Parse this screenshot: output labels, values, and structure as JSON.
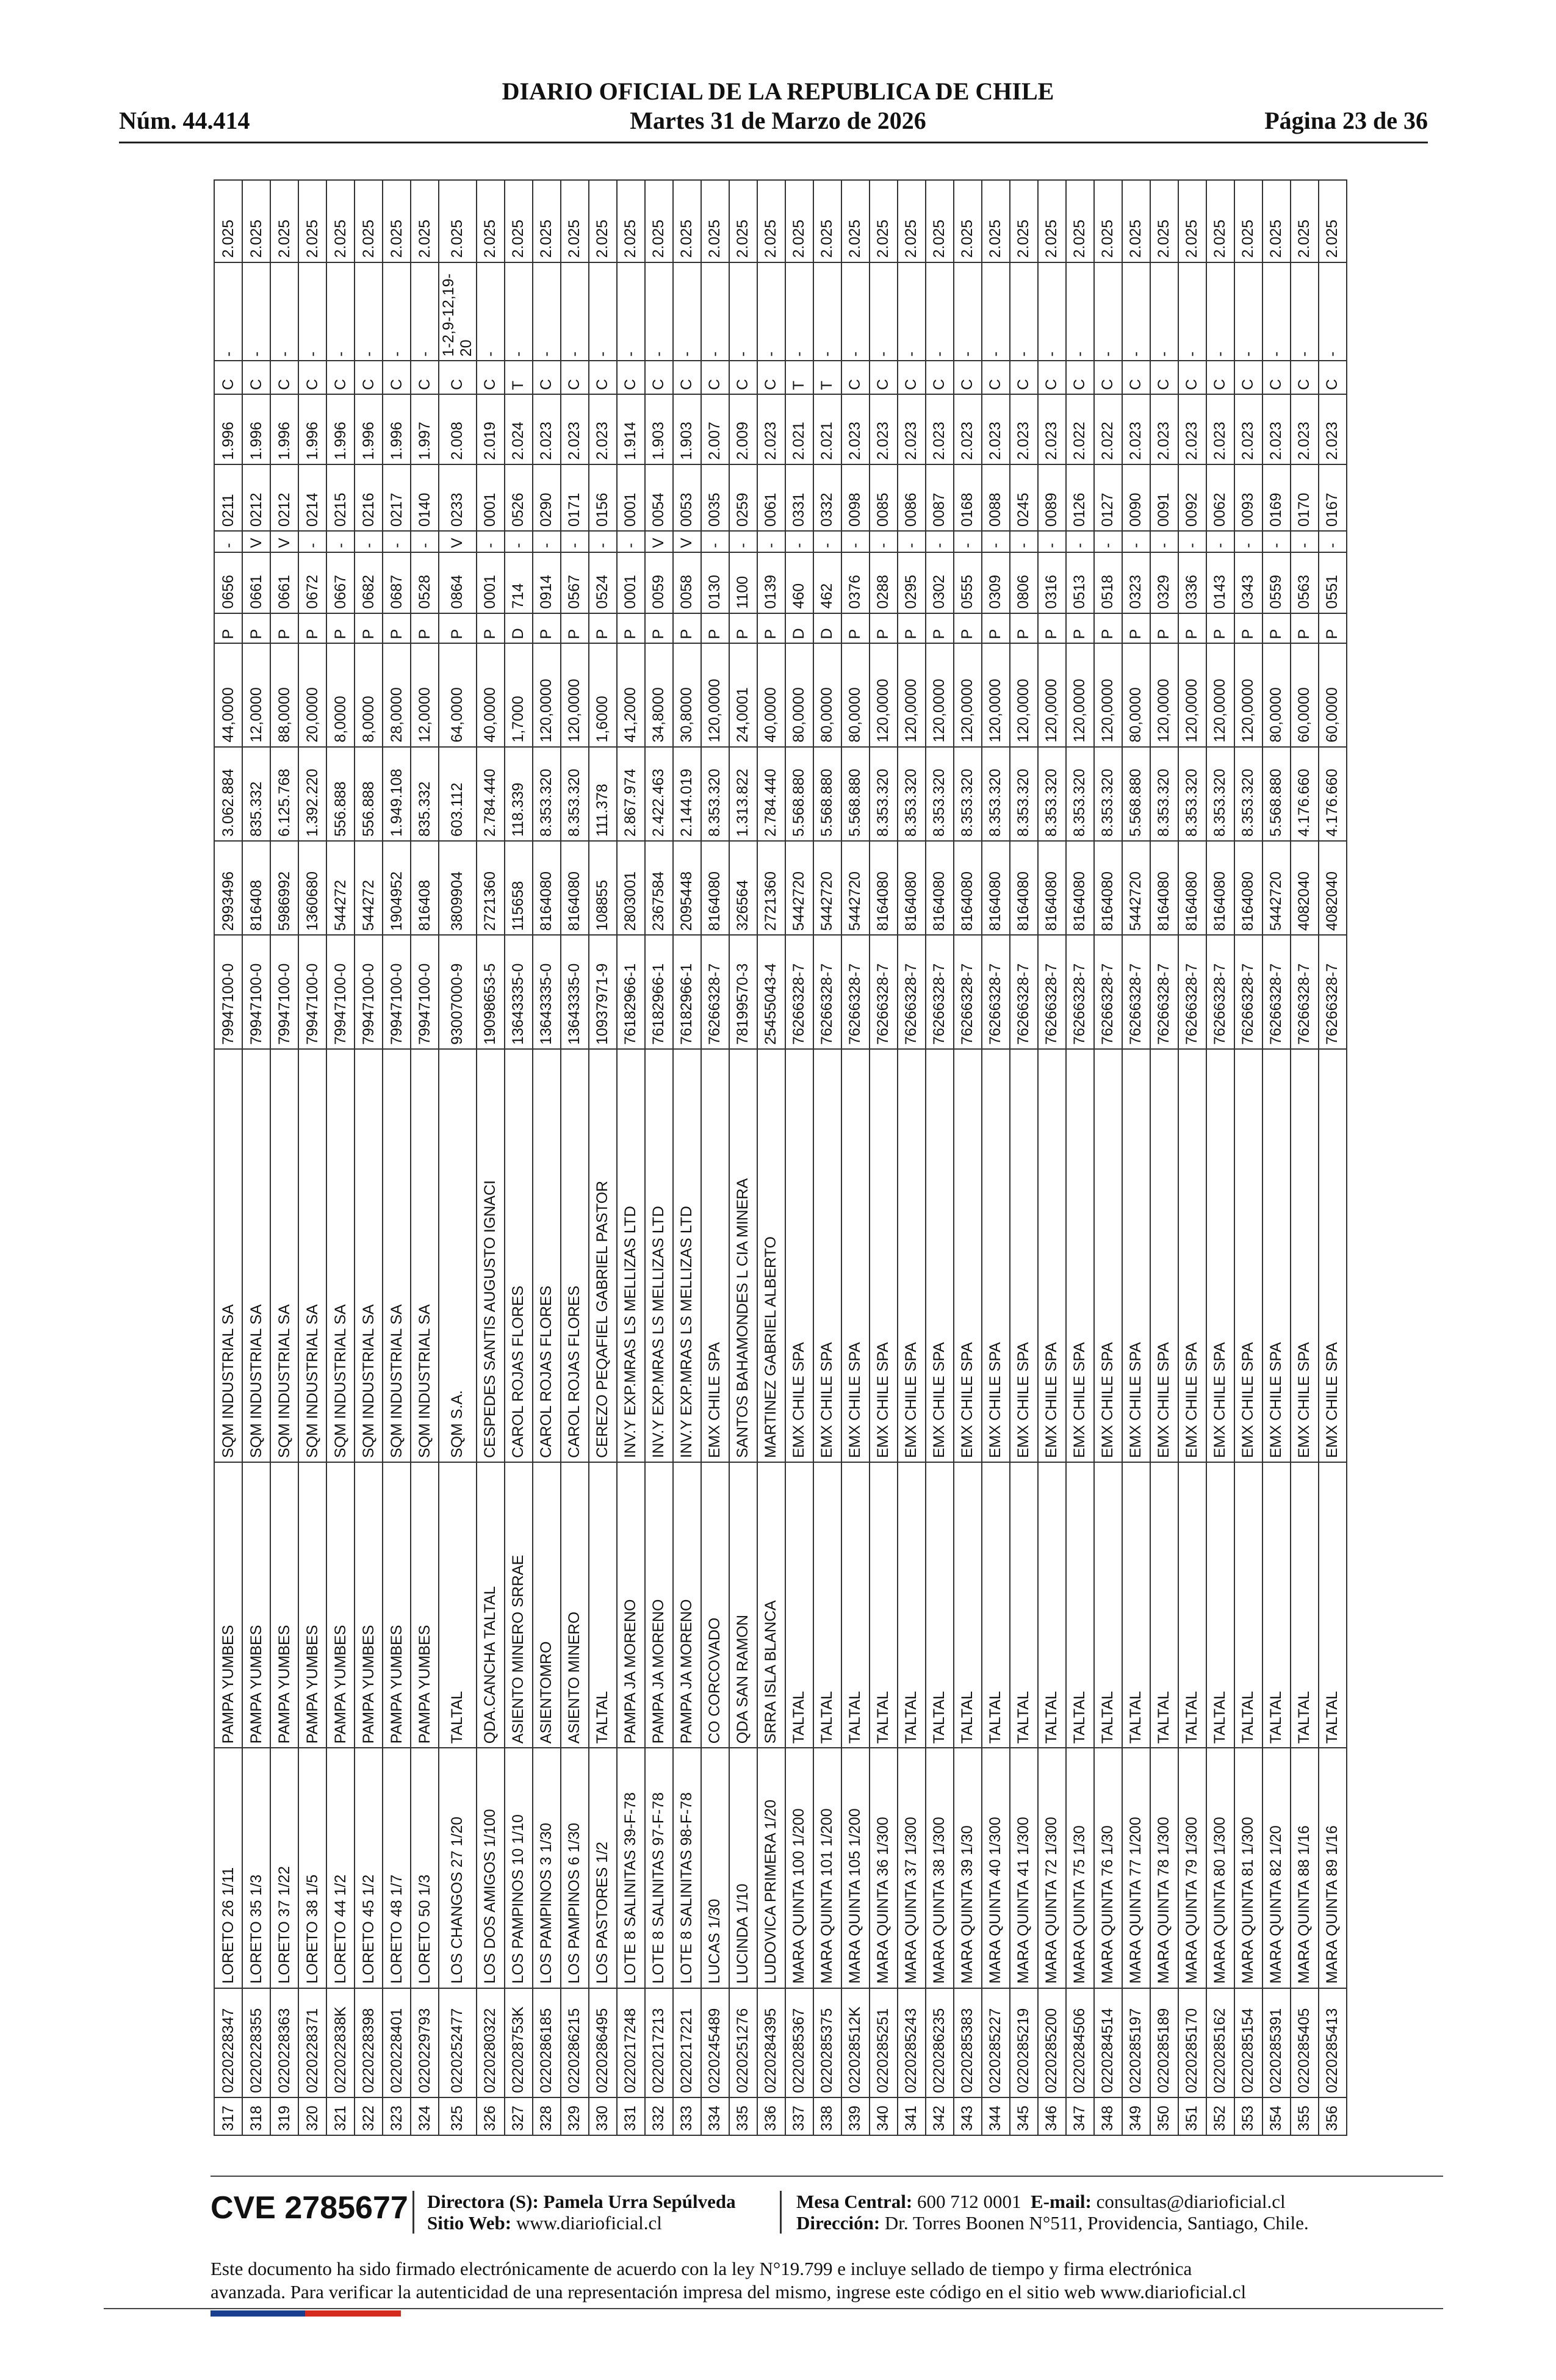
{
  "header": {
    "title": "DIARIO OFICIAL DE LA REPUBLICA DE CHILE",
    "number": "Núm. 44.414",
    "date": "Martes 31 de Marzo de 2026",
    "page": "Página 23 de 36"
  },
  "table": {
    "rows": [
      [
        "317",
        "0220228347",
        "LORETO 26 1/11",
        "PAMPA YUMBES",
        "SQM INDUSTRIAL SA",
        "79947100-0",
        "2993496",
        "3.062.884",
        "44,0000",
        "P",
        "0656",
        "-",
        "0211",
        "1.996",
        "C",
        "-",
        "2.025"
      ],
      [
        "318",
        "0220228355",
        "LORETO 35 1/3",
        "PAMPA YUMBES",
        "SQM INDUSTRIAL SA",
        "79947100-0",
        "816408",
        "835.332",
        "12,0000",
        "P",
        "0661",
        "V",
        "0212",
        "1.996",
        "C",
        "-",
        "2.025"
      ],
      [
        "319",
        "0220228363",
        "LORETO 37 1/22",
        "PAMPA YUMBES",
        "SQM INDUSTRIAL SA",
        "79947100-0",
        "5986992",
        "6.125.768",
        "88,0000",
        "P",
        "0661",
        "V",
        "0212",
        "1.996",
        "C",
        "-",
        "2.025"
      ],
      [
        "320",
        "0220228371",
        "LORETO 38 1/5",
        "PAMPA YUMBES",
        "SQM INDUSTRIAL SA",
        "79947100-0",
        "1360680",
        "1.392.220",
        "20,0000",
        "P",
        "0672",
        "-",
        "0214",
        "1.996",
        "C",
        "-",
        "2.025"
      ],
      [
        "321",
        "022022838K",
        "LORETO 44 1/2",
        "PAMPA YUMBES",
        "SQM INDUSTRIAL SA",
        "79947100-0",
        "544272",
        "556.888",
        "8,0000",
        "P",
        "0667",
        "-",
        "0215",
        "1.996",
        "C",
        "-",
        "2.025"
      ],
      [
        "322",
        "0220228398",
        "LORETO 45 1/2",
        "PAMPA YUMBES",
        "SQM INDUSTRIAL SA",
        "79947100-0",
        "544272",
        "556.888",
        "8,0000",
        "P",
        "0682",
        "-",
        "0216",
        "1.996",
        "C",
        "-",
        "2.025"
      ],
      [
        "323",
        "0220228401",
        "LORETO 48 1/7",
        "PAMPA YUMBES",
        "SQM INDUSTRIAL SA",
        "79947100-0",
        "1904952",
        "1.949.108",
        "28,0000",
        "P",
        "0687",
        "-",
        "0217",
        "1.996",
        "C",
        "-",
        "2.025"
      ],
      [
        "324",
        "0220229793",
        "LORETO 50 1/3",
        "PAMPA YUMBES",
        "SQM INDUSTRIAL SA",
        "79947100-0",
        "816408",
        "835.332",
        "12,0000",
        "P",
        "0528",
        "-",
        "0140",
        "1.997",
        "C",
        "-",
        "2.025"
      ],
      [
        "325",
        "0220252477",
        "LOS CHANGOS 27 1/20",
        "TALTAL",
        "SQM S.A.",
        "93007000-9",
        "3809904",
        "603.112",
        "64,0000",
        "P",
        "0864",
        "V",
        "0233",
        "2.008",
        "C",
        "1-2,9-12,19-20",
        "2.025"
      ],
      [
        "326",
        "0220280322",
        "LOS DOS AMIGOS 1/100",
        "QDA.CANCHA TALTAL",
        "CESPEDES SANTIS AUGUSTO IGNACI",
        "19098653-5",
        "2721360",
        "2.784.440",
        "40,0000",
        "P",
        "0001",
        "-",
        "0001",
        "2.019",
        "C",
        "-",
        "2.025"
      ],
      [
        "327",
        "022028753K",
        "LOS PAMPINOS 10 1/10",
        "ASIENTO MINERO SRRAE",
        "CAROL ROJAS FLORES",
        "13643335-0",
        "115658",
        "118.339",
        "1,7000",
        "D",
        "714",
        "-",
        "0526",
        "2.024",
        "T",
        "-",
        "2.025"
      ],
      [
        "328",
        "0220286185",
        "LOS PAMPINOS 3 1/30",
        "ASIENTOMRO",
        "CAROL ROJAS FLORES",
        "13643335-0",
        "8164080",
        "8.353.320",
        "120,0000",
        "P",
        "0914",
        "-",
        "0290",
        "2.023",
        "C",
        "-",
        "2.025"
      ],
      [
        "329",
        "0220286215",
        "LOS PAMPINOS 6 1/30",
        "ASIENTO MINERO",
        "CAROL ROJAS FLORES",
        "13643335-0",
        "8164080",
        "8.353.320",
        "120,0000",
        "P",
        "0567",
        "-",
        "0171",
        "2.023",
        "C",
        "-",
        "2.025"
      ],
      [
        "330",
        "0220286495",
        "LOS PASTORES 1/2",
        "TALTAL",
        "CEREZO PEQAFIEL GABRIEL PASTOR",
        "10937971-9",
        "108855",
        "111.378",
        "1,6000",
        "P",
        "0524",
        "-",
        "0156",
        "2.023",
        "C",
        "-",
        "2.025"
      ],
      [
        "331",
        "0220217248",
        "LOTE 8 SALINITAS 39-F-78",
        "PAMPA JA MORENO",
        "INV.Y EXP.MRAS LS MELLIZAS LTD",
        "76182966-1",
        "2803001",
        "2.867.974",
        "41,2000",
        "P",
        "0001",
        "-",
        "0001",
        "1.914",
        "C",
        "-",
        "2.025"
      ],
      [
        "332",
        "0220217213",
        "LOTE 8 SALINITAS 97-F-78",
        "PAMPA JA MORENO",
        "INV.Y EXP.MRAS LS MELLIZAS LTD",
        "76182966-1",
        "2367584",
        "2.422.463",
        "34,8000",
        "P",
        "0059",
        "V",
        "0054",
        "1.903",
        "C",
        "-",
        "2.025"
      ],
      [
        "333",
        "0220217221",
        "LOTE 8 SALINITAS 98-F-78",
        "PAMPA JA MORENO",
        "INV.Y EXP.MRAS LS MELLIZAS LTD",
        "76182966-1",
        "2095448",
        "2.144.019",
        "30,8000",
        "P",
        "0058",
        "V",
        "0053",
        "1.903",
        "C",
        "-",
        "2.025"
      ],
      [
        "334",
        "0220245489",
        "LUCAS 1/30",
        "CO CORCOVADO",
        "EMX CHILE SPA",
        "76266328-7",
        "8164080",
        "8.353.320",
        "120,0000",
        "P",
        "0130",
        "-",
        "0035",
        "2.007",
        "C",
        "-",
        "2.025"
      ],
      [
        "335",
        "0220251276",
        "LUCINDA 1/10",
        "QDA SAN RAMON",
        "SANTOS BAHAMONDES L CIA MINERA",
        "78199570-3",
        "326564",
        "1.313.822",
        "24,0001",
        "P",
        "1100",
        "-",
        "0259",
        "2.009",
        "C",
        "-",
        "2.025"
      ],
      [
        "336",
        "0220284395",
        "LUDOVICA PRIMERA 1/20",
        "SRRA ISLA BLANCA",
        "MARTINEZ GABRIEL ALBERTO",
        "25455043-4",
        "2721360",
        "2.784.440",
        "40,0000",
        "P",
        "0139",
        "-",
        "0061",
        "2.023",
        "C",
        "-",
        "2.025"
      ],
      [
        "337",
        "0220285367",
        "MARA QUINTA 100 1/200",
        "TALTAL",
        "EMX CHILE SPA",
        "76266328-7",
        "5442720",
        "5.568.880",
        "80,0000",
        "D",
        "460",
        "-",
        "0331",
        "2.021",
        "T",
        "-",
        "2.025"
      ],
      [
        "338",
        "0220285375",
        "MARA QUINTA 101 1/200",
        "TALTAL",
        "EMX CHILE SPA",
        "76266328-7",
        "5442720",
        "5.568.880",
        "80,0000",
        "D",
        "462",
        "-",
        "0332",
        "2.021",
        "T",
        "-",
        "2.025"
      ],
      [
        "339",
        "022028512K",
        "MARA QUINTA 105 1/200",
        "TALTAL",
        "EMX CHILE SPA",
        "76266328-7",
        "5442720",
        "5.568.880",
        "80,0000",
        "P",
        "0376",
        "-",
        "0098",
        "2.023",
        "C",
        "-",
        "2.025"
      ],
      [
        "340",
        "0220285251",
        "MARA QUINTA 36 1/300",
        "TALTAL",
        "EMX CHILE SPA",
        "76266328-7",
        "8164080",
        "8.353.320",
        "120,0000",
        "P",
        "0288",
        "-",
        "0085",
        "2.023",
        "C",
        "-",
        "2.025"
      ],
      [
        "341",
        "0220285243",
        "MARA QUINTA 37 1/300",
        "TALTAL",
        "EMX CHILE SPA",
        "76266328-7",
        "8164080",
        "8.353.320",
        "120,0000",
        "P",
        "0295",
        "-",
        "0086",
        "2.023",
        "C",
        "-",
        "2.025"
      ],
      [
        "342",
        "0220286235",
        "MARA QUINTA 38 1/300",
        "TALTAL",
        "EMX CHILE SPA",
        "76266328-7",
        "8164080",
        "8.353.320",
        "120,0000",
        "P",
        "0302",
        "-",
        "0087",
        "2.023",
        "C",
        "-",
        "2.025"
      ],
      [
        "343",
        "0220285383",
        "MARA QUINTA 39 1/30",
        "TALTAL",
        "EMX CHILE SPA",
        "76266328-7",
        "8164080",
        "8.353.320",
        "120,0000",
        "P",
        "0555",
        "-",
        "0168",
        "2.023",
        "C",
        "-",
        "2.025"
      ],
      [
        "344",
        "0220285227",
        "MARA QUINTA 40 1/300",
        "TALTAL",
        "EMX CHILE SPA",
        "76266328-7",
        "8164080",
        "8.353.320",
        "120,0000",
        "P",
        "0309",
        "-",
        "0088",
        "2.023",
        "C",
        "-",
        "2.025"
      ],
      [
        "345",
        "0220285219",
        "MARA QUINTA 41 1/300",
        "TALTAL",
        "EMX CHILE SPA",
        "76266328-7",
        "8164080",
        "8.353.320",
        "120,0000",
        "P",
        "0806",
        "-",
        "0245",
        "2.023",
        "C",
        "-",
        "2.025"
      ],
      [
        "346",
        "0220285200",
        "MARA QUINTA 72 1/300",
        "TALTAL",
        "EMX CHILE SPA",
        "76266328-7",
        "8164080",
        "8.353.320",
        "120,0000",
        "P",
        "0316",
        "-",
        "0089",
        "2.023",
        "C",
        "-",
        "2.025"
      ],
      [
        "347",
        "0220284506",
        "MARA QUINTA 75 1/30",
        "TALTAL",
        "EMX CHILE SPA",
        "76266328-7",
        "8164080",
        "8.353.320",
        "120,0000",
        "P",
        "0513",
        "-",
        "0126",
        "2.022",
        "C",
        "-",
        "2.025"
      ],
      [
        "348",
        "0220284514",
        "MARA QUINTA 76 1/30",
        "TALTAL",
        "EMX CHILE SPA",
        "76266328-7",
        "8164080",
        "8.353.320",
        "120,0000",
        "P",
        "0518",
        "-",
        "0127",
        "2.022",
        "C",
        "-",
        "2.025"
      ],
      [
        "349",
        "0220285197",
        "MARA QUINTA 77 1/200",
        "TALTAL",
        "EMX CHILE SPA",
        "76266328-7",
        "5442720",
        "5.568.880",
        "80,0000",
        "P",
        "0323",
        "-",
        "0090",
        "2.023",
        "C",
        "-",
        "2.025"
      ],
      [
        "350",
        "0220285189",
        "MARA QUINTA 78 1/300",
        "TALTAL",
        "EMX CHILE SPA",
        "76266328-7",
        "8164080",
        "8.353.320",
        "120,0000",
        "P",
        "0329",
        "-",
        "0091",
        "2.023",
        "C",
        "-",
        "2.025"
      ],
      [
        "351",
        "0220285170",
        "MARA QUINTA 79 1/300",
        "TALTAL",
        "EMX CHILE SPA",
        "76266328-7",
        "8164080",
        "8.353.320",
        "120,0000",
        "P",
        "0336",
        "-",
        "0092",
        "2.023",
        "C",
        "-",
        "2.025"
      ],
      [
        "352",
        "0220285162",
        "MARA QUINTA 80 1/300",
        "TALTAL",
        "EMX CHILE SPA",
        "76266328-7",
        "8164080",
        "8.353.320",
        "120,0000",
        "P",
        "0143",
        "-",
        "0062",
        "2.023",
        "C",
        "-",
        "2.025"
      ],
      [
        "353",
        "0220285154",
        "MARA QUINTA 81 1/300",
        "TALTAL",
        "EMX CHILE SPA",
        "76266328-7",
        "8164080",
        "8.353.320",
        "120,0000",
        "P",
        "0343",
        "-",
        "0093",
        "2.023",
        "C",
        "-",
        "2.025"
      ],
      [
        "354",
        "0220285391",
        "MARA QUINTA 82 1/20",
        "TALTAL",
        "EMX CHILE SPA",
        "76266328-7",
        "5442720",
        "5.568.880",
        "80,0000",
        "P",
        "0559",
        "-",
        "0169",
        "2.023",
        "C",
        "-",
        "2.025"
      ],
      [
        "355",
        "0220285405",
        "MARA QUINTA 88 1/16",
        "TALTAL",
        "EMX CHILE SPA",
        "76266328-7",
        "4082040",
        "4.176.660",
        "60,0000",
        "P",
        "0563",
        "-",
        "0170",
        "2.023",
        "C",
        "-",
        "2.025"
      ],
      [
        "356",
        "0220285413",
        "MARA QUINTA 89 1/16",
        "TALTAL",
        "EMX CHILE SPA",
        "76266328-7",
        "4082040",
        "4.176.660",
        "60,0000",
        "P",
        "0551",
        "-",
        "0167",
        "2.023",
        "C",
        "-",
        "2.025"
      ]
    ]
  },
  "footer": {
    "cve": "CVE 2785677",
    "director": "Directora (S): Pamela Urra Sepúlveda",
    "web_label": "Sitio Web:",
    "web": "www.diarioficial.cl",
    "phone_label": "Mesa Central:",
    "phone": "600 712 0001",
    "email_label": "E-mail:",
    "email": "consultas@diarioficial.cl",
    "address_label": "Dirección:",
    "address": "Dr. Torres Boonen N°511, Providencia, Santiago, Chile.",
    "notice": [
      "Este documento ha sido firmado electrónicamente de acuerdo con la ley N°19.799 e incluye sellado de tiempo y firma electrónica",
      "avanzada. Para verificar la autenticidad de una representación impresa del mismo, ingrese este código en el sitio web www.diarioficial.cl"
    ]
  }
}
